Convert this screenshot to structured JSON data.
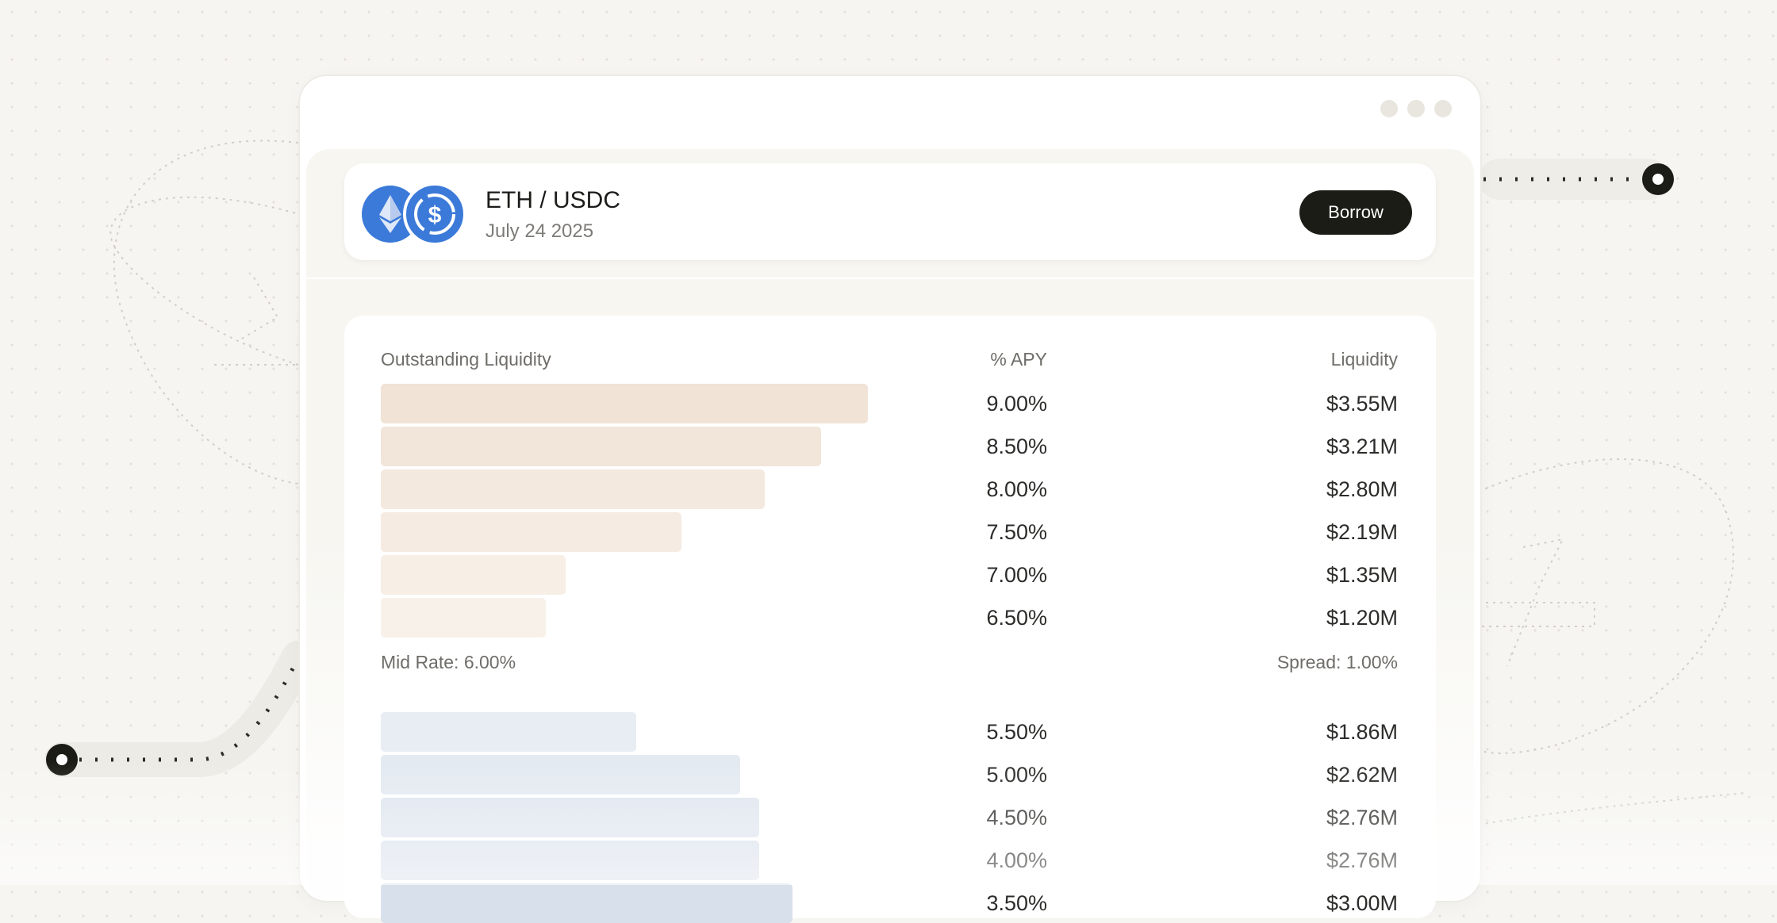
{
  "pair": {
    "title": "ETH / USDC",
    "date": "July 24 2025",
    "base_icon": "eth-icon",
    "quote_icon": "usdc-icon"
  },
  "actions": {
    "borrow_label": "Borrow"
  },
  "book": {
    "headers": {
      "outstanding": "Outstanding Liquidity",
      "apy": "% APY",
      "liquidity": "Liquidity"
    },
    "mid_rate": "Mid Rate: 6.00%",
    "spread": "Spread: 1.00%",
    "asks": [
      {
        "apy": "9.00%",
        "liquidity": "$3.55M"
      },
      {
        "apy": "8.50%",
        "liquidity": "$3.21M"
      },
      {
        "apy": "8.00%",
        "liquidity": "$2.80M"
      },
      {
        "apy": "7.50%",
        "liquidity": "$2.19M"
      },
      {
        "apy": "7.00%",
        "liquidity": "$1.35M"
      },
      {
        "apy": "6.50%",
        "liquidity": "$1.20M"
      }
    ],
    "bids": [
      {
        "apy": "5.50%",
        "liquidity": "$1.86M"
      },
      {
        "apy": "5.00%",
        "liquidity": "$2.62M"
      },
      {
        "apy": "4.50%",
        "liquidity": "$2.76M"
      },
      {
        "apy": "4.00%",
        "liquidity": "$2.76M"
      },
      {
        "apy": "3.50%",
        "liquidity": "$3.00M"
      }
    ]
  },
  "colors": {
    "ask_bar": "#f1e3d6",
    "bid_bar": "#d6deea",
    "button_bg": "#1c1c16",
    "coin_blue": "#3b7ad9"
  }
}
